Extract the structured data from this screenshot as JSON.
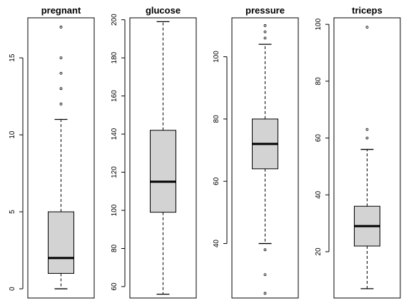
{
  "chart_data": [
    {
      "type": "boxplot",
      "title": "pregnant",
      "ylim": [
        -0.6,
        17.6
      ],
      "ticks": [
        0,
        5,
        10,
        15
      ],
      "box": {
        "whisker_low": 0,
        "q1": 1,
        "median": 2,
        "q3": 5,
        "whisker_high": 11
      },
      "outliers": [
        12,
        13,
        14,
        15,
        17
      ]
    },
    {
      "type": "boxplot",
      "title": "glucose",
      "ylim": [
        54,
        201
      ],
      "ticks": [
        60,
        80,
        100,
        120,
        140,
        160,
        180,
        200
      ],
      "box": {
        "whisker_low": 56,
        "q1": 99,
        "median": 115,
        "q3": 142,
        "whisker_high": 199
      },
      "outliers": []
    },
    {
      "type": "boxplot",
      "title": "pressure",
      "ylim": [
        22.5,
        112.5
      ],
      "ticks": [
        40,
        60,
        80,
        100
      ],
      "box": {
        "whisker_low": 40,
        "q1": 64,
        "median": 72,
        "q3": 80,
        "whisker_high": 104
      },
      "outliers": [
        24,
        30,
        38,
        106,
        108,
        110
      ]
    },
    {
      "type": "boxplot",
      "title": "triceps",
      "ylim": [
        3.7,
        102.3
      ],
      "ticks": [
        20,
        40,
        60,
        80,
        100
      ],
      "box": {
        "whisker_low": 7,
        "q1": 22,
        "median": 29,
        "q3": 36,
        "whisker_high": 56
      },
      "outliers": [
        60,
        63,
        99
      ]
    }
  ],
  "style": {
    "box_fill": "#d3d3d3",
    "stroke": "#000000"
  }
}
